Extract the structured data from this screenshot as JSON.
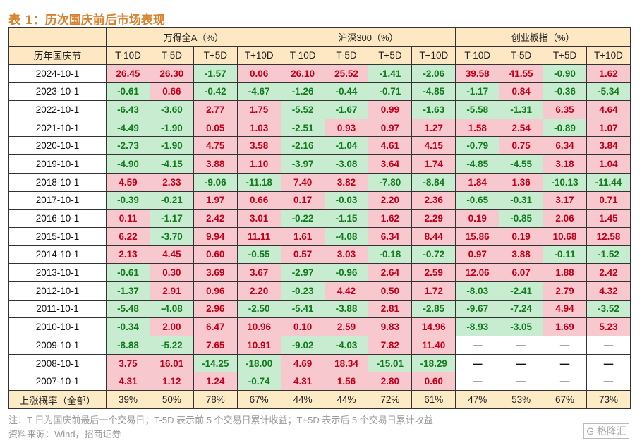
{
  "title": "表 1：历次国庆前后市场表现",
  "header": {
    "row_label": "历年国庆节",
    "groups": [
      "万得全A（%）",
      "沪深300（%）",
      "创业板指（%）"
    ],
    "subcols": [
      "T-10D",
      "T-5D",
      "T+5D",
      "T+10D"
    ]
  },
  "rows": [
    {
      "date": "2024-10-1",
      "values": [
        "26.45",
        "26.30",
        "-1.57",
        "0.06",
        "26.10",
        "25.52",
        "-1.41",
        "-2.06",
        "39.58",
        "41.55",
        "-0.90",
        "1.62"
      ]
    },
    {
      "date": "2023-10-1",
      "values": [
        "-0.61",
        "0.66",
        "-0.42",
        "-4.67",
        "-1.26",
        "-0.44",
        "-0.71",
        "-4.85",
        "-1.17",
        "0.84",
        "-0.36",
        "-5.34"
      ]
    },
    {
      "date": "2022-10-1",
      "values": [
        "-6.43",
        "-3.60",
        "2.77",
        "1.75",
        "-5.52",
        "-1.67",
        "0.99",
        "-1.63",
        "-5.58",
        "-1.31",
        "6.35",
        "4.64"
      ]
    },
    {
      "date": "2021-10-1",
      "values": [
        "-4.49",
        "-1.90",
        "0.05",
        "1.03",
        "-2.51",
        "0.93",
        "0.97",
        "1.27",
        "1.58",
        "2.54",
        "-0.89",
        "1.07"
      ]
    },
    {
      "date": "2020-10-1",
      "values": [
        "-2.73",
        "-1.90",
        "4.75",
        "3.58",
        "-2.16",
        "-1.04",
        "4.61",
        "4.15",
        "-0.79",
        "0.75",
        "6.34",
        "3.84"
      ]
    },
    {
      "date": "2019-10-1",
      "values": [
        "-4.90",
        "-4.15",
        "3.88",
        "1.10",
        "-3.97",
        "-3.08",
        "3.64",
        "1.74",
        "-4.85",
        "-4.55",
        "3.18",
        "1.04"
      ]
    },
    {
      "date": "2018-10-1",
      "values": [
        "4.59",
        "2.33",
        "-9.06",
        "-11.18",
        "7.40",
        "3.82",
        "-7.80",
        "-8.84",
        "1.84",
        "1.36",
        "-10.13",
        "-11.44"
      ]
    },
    {
      "date": "2017-10-1",
      "values": [
        "-0.39",
        "-0.21",
        "1.97",
        "0.66",
        "0.17",
        "-0.03",
        "2.20",
        "2.36",
        "-0.65",
        "-0.31",
        "3.17",
        "0.71"
      ]
    },
    {
      "date": "2016-10-1",
      "values": [
        "0.11",
        "-1.17",
        "2.42",
        "3.01",
        "-0.22",
        "-1.15",
        "1.62",
        "2.29",
        "0.19",
        "-0.85",
        "2.06",
        "1.45"
      ]
    },
    {
      "date": "2015-10-1",
      "values": [
        "6.22",
        "-3.70",
        "9.94",
        "11.11",
        "1.61",
        "-4.08",
        "6.34",
        "8.44",
        "15.86",
        "0.19",
        "10.68",
        "12.58"
      ]
    },
    {
      "date": "2014-10-1",
      "values": [
        "2.13",
        "4.45",
        "0.60",
        "-0.55",
        "0.57",
        "3.03",
        "-0.18",
        "-0.72",
        "0.97",
        "3.88",
        "-0.11",
        "-1.52"
      ]
    },
    {
      "date": "2013-10-1",
      "values": [
        "-0.61",
        "0.30",
        "3.69",
        "3.67",
        "-2.97",
        "-0.96",
        "2.64",
        "2.59",
        "12.06",
        "6.07",
        "1.88",
        "2.42"
      ]
    },
    {
      "date": "2012-10-1",
      "values": [
        "-1.37",
        "2.91",
        "0.96",
        "2.20",
        "-0.23",
        "4.42",
        "0.50",
        "1.72",
        "-8.03",
        "-2.41",
        "2.79",
        "4.32"
      ]
    },
    {
      "date": "2011-10-1",
      "values": [
        "-5.48",
        "-4.08",
        "2.96",
        "-2.50",
        "-5.41",
        "-3.88",
        "2.81",
        "-2.85",
        "-9.67",
        "-7.24",
        "4.94",
        "-3.52"
      ]
    },
    {
      "date": "2010-10-1",
      "values": [
        "-0.34",
        "2.00",
        "6.47",
        "10.96",
        "0.10",
        "2.59",
        "9.83",
        "14.96",
        "-8.93",
        "-3.05",
        "1.69",
        "5.23"
      ]
    },
    {
      "date": "2009-10-1",
      "values": [
        "-8.88",
        "-5.22",
        "7.65",
        "10.91",
        "-9.02",
        "-4.03",
        "7.82",
        "11.40",
        "—",
        "—",
        "—",
        "—"
      ]
    },
    {
      "date": "2008-10-1",
      "values": [
        "3.75",
        "16.01",
        "-14.25",
        "-18.00",
        "4.69",
        "18.34",
        "-15.01",
        "-18.29",
        "—",
        "—",
        "—",
        "—"
      ]
    },
    {
      "date": "2007-10-1",
      "values": [
        "4.31",
        "1.12",
        "1.24",
        "-0.74",
        "4.31",
        "1.56",
        "2.80",
        "0.60",
        "—",
        "—",
        "—",
        "—"
      ]
    }
  ],
  "prob": {
    "label": "上涨概率（全部）",
    "values": [
      "39%",
      "50%",
      "78%",
      "67%",
      "44%",
      "44%",
      "72%",
      "61%",
      "47%",
      "53%",
      "67%",
      "73%"
    ]
  },
  "notes": [
    "注：T 日为国庆前最后一个交易日；T-5D 表示前 5 个交易日累计收益；T+5D 表示后 5 个交易日累计收益",
    "资料来源：Wind，招商证券"
  ],
  "watermark": "格隆汇",
  "colors": {
    "pos_bg": "#f8c8cf",
    "pos_text": "#c0001a",
    "neg_bg": "#c7ecd0",
    "neg_text": "#147a1e",
    "header_bg": "#fde8c3",
    "title": "#d9822b"
  }
}
